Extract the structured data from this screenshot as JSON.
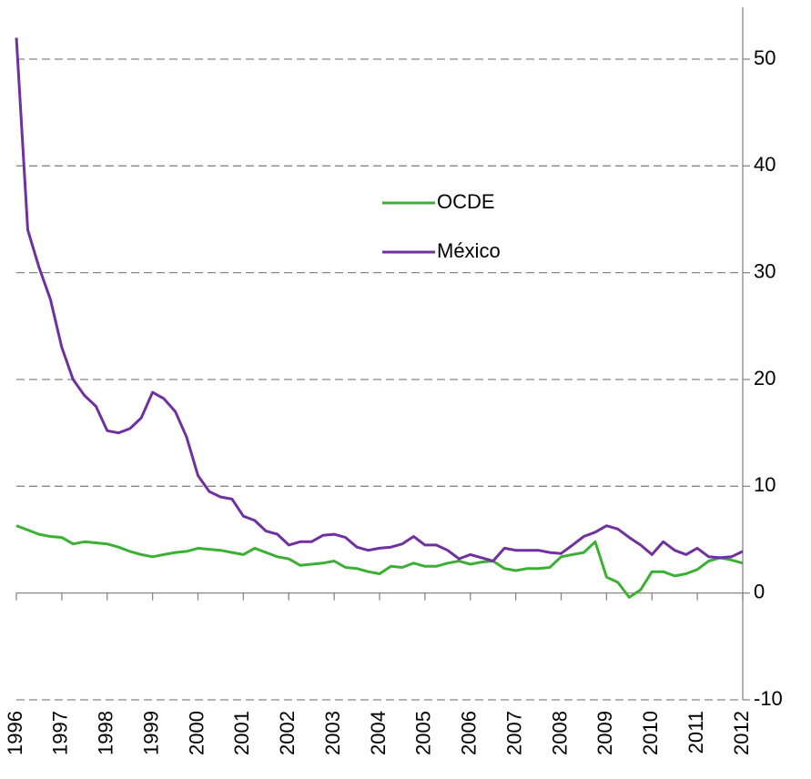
{
  "chart_data": {
    "type": "line",
    "x": [
      1996,
      1996.25,
      1996.5,
      1996.75,
      1997,
      1997.25,
      1997.5,
      1997.75,
      1998,
      1998.25,
      1998.5,
      1998.75,
      1999,
      1999.25,
      1999.5,
      1999.75,
      2000,
      2000.25,
      2000.5,
      2000.75,
      2001,
      2001.25,
      2001.5,
      2001.75,
      2002,
      2002.25,
      2002.5,
      2002.75,
      2003,
      2003.25,
      2003.5,
      2003.75,
      2004,
      2004.25,
      2004.5,
      2004.75,
      2005,
      2005.25,
      2005.5,
      2005.75,
      2006,
      2006.25,
      2006.5,
      2006.75,
      2007,
      2007.25,
      2007.5,
      2007.75,
      2008,
      2008.25,
      2008.5,
      2008.75,
      2009,
      2009.25,
      2009.5,
      2009.75,
      2010,
      2010.25,
      2010.5,
      2010.75,
      2011,
      2011.25,
      2011.5,
      2011.75,
      2012
    ],
    "series": [
      {
        "name": "OCDE",
        "color": "#3cb034",
        "values": [
          6.3,
          5.9,
          5.5,
          5.3,
          5.2,
          4.6,
          4.8,
          4.7,
          4.6,
          4.3,
          3.9,
          3.6,
          3.4,
          3.6,
          3.8,
          3.9,
          4.2,
          4.1,
          4.0,
          3.8,
          3.6,
          4.2,
          3.8,
          3.4,
          3.2,
          2.6,
          2.7,
          2.8,
          3.0,
          2.4,
          2.3,
          2.0,
          1.8,
          2.5,
          2.4,
          2.8,
          2.5,
          2.5,
          2.8,
          3.0,
          2.7,
          2.9,
          3.0,
          2.3,
          2.1,
          2.3,
          2.3,
          2.4,
          3.4,
          3.6,
          3.8,
          4.8,
          1.5,
          1.0,
          -0.4,
          0.3,
          2.0,
          2.0,
          1.6,
          1.8,
          2.2,
          3.0,
          3.3,
          3.1,
          2.8
        ]
      },
      {
        "name": "México",
        "color": "#7030a0",
        "values": [
          52,
          34,
          30.5,
          27.5,
          23,
          20,
          18.5,
          17.5,
          15.2,
          15.0,
          15.4,
          16.4,
          18.8,
          18.2,
          17,
          14.6,
          11,
          9.5,
          9.0,
          8.8,
          7.2,
          6.8,
          5.8,
          5.5,
          4.5,
          4.8,
          4.8,
          5.4,
          5.5,
          5.2,
          4.3,
          4.0,
          4.2,
          4.3,
          4.6,
          5.3,
          4.5,
          4.5,
          4.0,
          3.2,
          3.6,
          3.3,
          3.0,
          4.2,
          4.0,
          4.0,
          4.0,
          3.8,
          3.7,
          4.5,
          5.3,
          5.7,
          6.3,
          6.0,
          5.2,
          4.5,
          3.6,
          4.8,
          4.0,
          3.6,
          4.2,
          3.4,
          3.3,
          3.4,
          3.9
        ]
      }
    ],
    "xlim": [
      1996,
      2012
    ],
    "xticks": [
      1996,
      1997,
      1998,
      1999,
      2000,
      2001,
      2002,
      2003,
      2004,
      2005,
      2006,
      2007,
      2008,
      2009,
      2010,
      2011,
      2012
    ],
    "ylim": [
      -10,
      55
    ],
    "yticks": [
      -10,
      0,
      10,
      20,
      30,
      40,
      50
    ],
    "grid": true,
    "yaxis_side": "right",
    "legend": "center"
  }
}
